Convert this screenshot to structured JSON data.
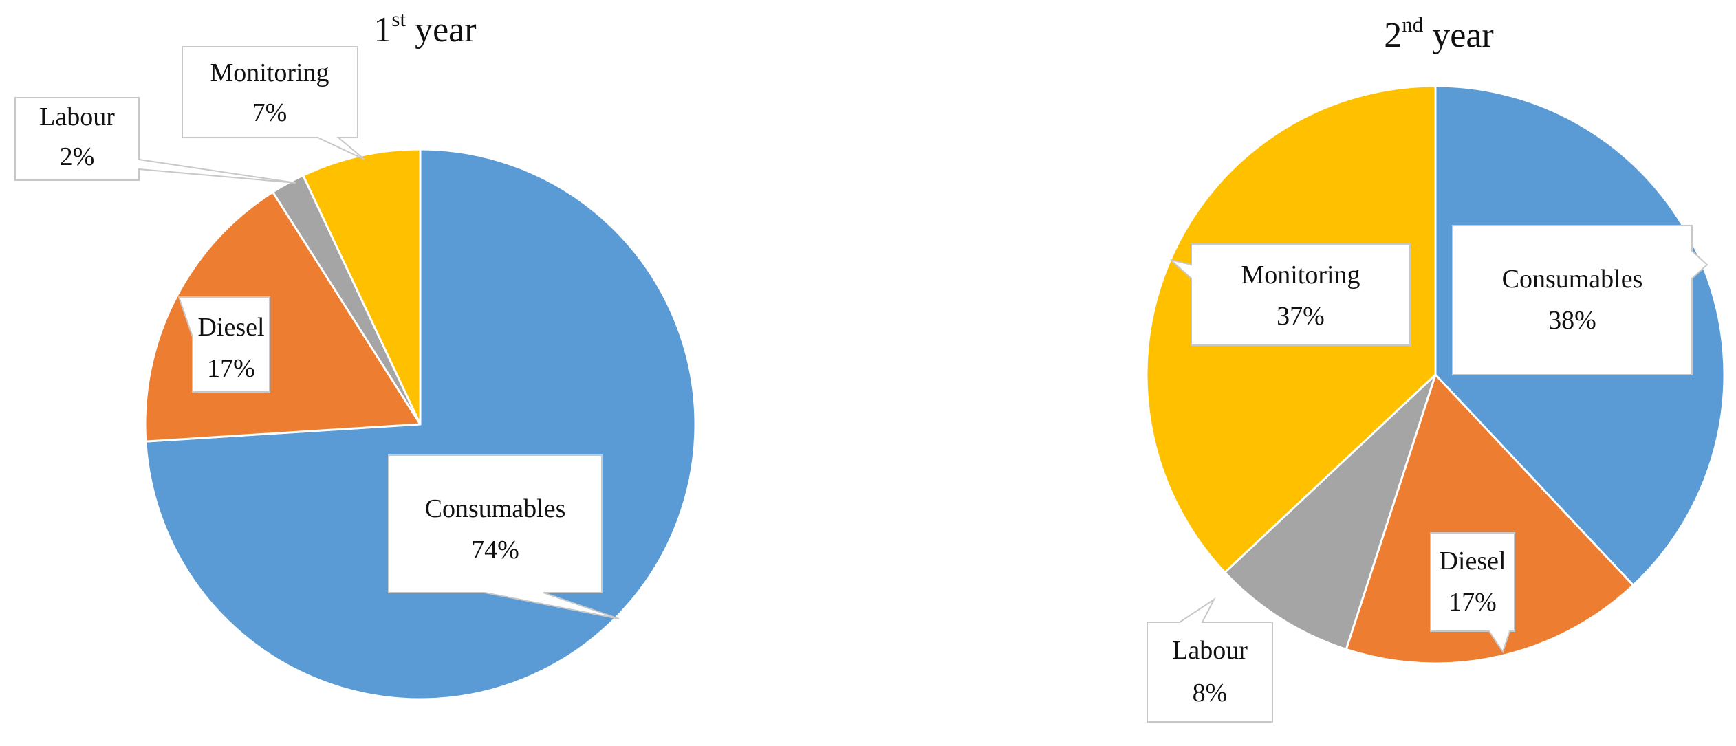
{
  "chart_data": [
    {
      "type": "pie",
      "title": {
        "base": "1",
        "sup": "st",
        "rest": " year"
      },
      "categories": [
        "Consumables",
        "Diesel",
        "Labour",
        "Monitoring"
      ],
      "values": [
        74,
        17,
        2,
        7
      ],
      "labels": [
        {
          "name": "Consumables",
          "value": "74%"
        },
        {
          "name": "Diesel",
          "value": "17%"
        },
        {
          "name": "Labour",
          "value": "2%"
        },
        {
          "name": "Monitoring",
          "value": "7%"
        }
      ],
      "colors": [
        "#5b9bd5",
        "#ed7d31",
        "#a5a5a5",
        "#ffc000"
      ],
      "legend": "none",
      "start_angle": "12 o'clock",
      "direction": "clockwise"
    },
    {
      "type": "pie",
      "title": {
        "base": "2",
        "sup": "nd",
        "rest": " year"
      },
      "categories": [
        "Consumables",
        "Diesel",
        "Labour",
        "Monitoring"
      ],
      "values": [
        38,
        17,
        8,
        37
      ],
      "labels": [
        {
          "name": "Consumables",
          "value": "38%"
        },
        {
          "name": "Diesel",
          "value": "17%"
        },
        {
          "name": "Labour",
          "value": "8%"
        },
        {
          "name": "Monitoring",
          "value": "37%"
        }
      ],
      "colors": [
        "#5b9bd5",
        "#ed7d31",
        "#a5a5a5",
        "#ffc000"
      ],
      "legend": "none",
      "start_angle": "12 o'clock",
      "direction": "clockwise"
    }
  ]
}
